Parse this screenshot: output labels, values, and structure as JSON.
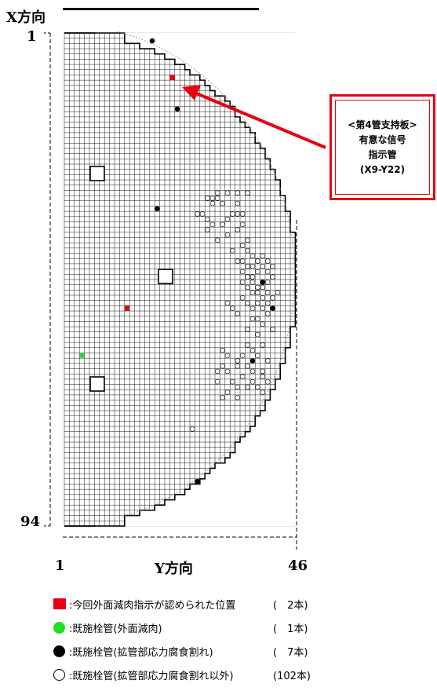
{
  "axes": {
    "x_direction_label": "X方向",
    "y_direction_label": "Y方向",
    "x_start": "1",
    "x_end": "94",
    "y_start": "1",
    "y_end": "46"
  },
  "callout": {
    "line1": "<第4管支持板>",
    "line2": "有意な信号",
    "line3": "指示管",
    "line4": "(X9-Y22)"
  },
  "legend": [
    {
      "symbol": "red-square",
      "label": ":今回外面減肉指示が認められた位置",
      "count": "(　2本)"
    },
    {
      "symbol": "green-circle",
      "label": ":既施栓管(外面減肉)",
      "count": "(　1本)"
    },
    {
      "symbol": "black-circle",
      "label": ":既施栓管(拡管部応力腐食割れ)",
      "count": "(　7本)"
    },
    {
      "symbol": "open-circle",
      "label": ":既施栓管(拡管部応力腐食割れ以外)",
      "count": "(102本)"
    }
  ],
  "colors": {
    "red": "#e60012",
    "green": "#22dd22",
    "black": "#000000",
    "grid": "#000000"
  },
  "markers": {
    "red_squares": [
      [
        9,
        22
      ],
      [
        53,
        13
      ]
    ],
    "green_circles": [
      [
        62,
        4
      ]
    ],
    "black_circles": [
      [
        2,
        18
      ],
      [
        15,
        23
      ],
      [
        34,
        19
      ],
      [
        48,
        40
      ],
      [
        53,
        42
      ],
      [
        63,
        38
      ],
      [
        86,
        27
      ]
    ],
    "open_circles": [
      [
        31,
        31
      ],
      [
        31,
        33
      ],
      [
        31,
        35
      ],
      [
        31,
        37
      ],
      [
        32,
        29
      ],
      [
        32,
        30
      ],
      [
        32,
        31
      ],
      [
        33,
        30
      ],
      [
        33,
        32
      ],
      [
        33,
        35
      ],
      [
        35,
        27
      ],
      [
        35,
        28
      ],
      [
        35,
        34
      ],
      [
        35,
        35
      ],
      [
        35,
        36
      ],
      [
        36,
        29
      ],
      [
        36,
        33
      ],
      [
        37,
        30
      ],
      [
        37,
        32
      ],
      [
        37,
        36
      ],
      [
        38,
        29
      ],
      [
        38,
        35
      ],
      [
        39,
        33
      ],
      [
        40,
        31
      ],
      [
        40,
        37
      ],
      [
        41,
        36
      ],
      [
        42,
        34
      ],
      [
        42,
        37
      ],
      [
        43,
        38
      ],
      [
        43,
        40
      ],
      [
        44,
        35
      ],
      [
        44,
        36
      ],
      [
        44,
        39
      ],
      [
        44,
        41
      ],
      [
        45,
        37
      ],
      [
        45,
        38
      ],
      [
        45,
        40
      ],
      [
        45,
        42
      ],
      [
        46,
        36
      ],
      [
        46,
        39
      ],
      [
        46,
        41
      ],
      [
        47,
        37
      ],
      [
        47,
        38
      ],
      [
        47,
        42
      ],
      [
        48,
        36
      ],
      [
        48,
        38
      ],
      [
        48,
        41
      ],
      [
        49,
        37
      ],
      [
        49,
        39
      ],
      [
        49,
        40
      ],
      [
        50,
        38
      ],
      [
        50,
        39
      ],
      [
        50,
        41
      ],
      [
        50,
        43
      ],
      [
        51,
        36
      ],
      [
        51,
        40
      ],
      [
        51,
        42
      ],
      [
        52,
        33
      ],
      [
        52,
        37
      ],
      [
        52,
        39
      ],
      [
        52,
        41
      ],
      [
        53,
        34
      ],
      [
        53,
        38
      ],
      [
        53,
        40
      ],
      [
        54,
        35
      ],
      [
        54,
        41
      ],
      [
        55,
        38
      ],
      [
        55,
        39
      ],
      [
        56,
        40
      ],
      [
        57,
        37
      ],
      [
        57,
        42
      ],
      [
        58,
        39
      ],
      [
        60,
        37
      ],
      [
        60,
        40
      ],
      [
        61,
        32
      ],
      [
        61,
        38
      ],
      [
        62,
        33
      ],
      [
        62,
        36
      ],
      [
        62,
        39
      ],
      [
        63,
        35
      ],
      [
        63,
        41
      ],
      [
        64,
        32
      ],
      [
        64,
        35
      ],
      [
        64,
        37
      ],
      [
        65,
        31
      ],
      [
        65,
        33
      ],
      [
        65,
        38
      ],
      [
        65,
        40
      ],
      [
        66,
        36
      ],
      [
        66,
        40
      ],
      [
        67,
        31
      ],
      [
        67,
        34
      ],
      [
        67,
        38
      ],
      [
        67,
        41
      ],
      [
        68,
        35
      ],
      [
        68,
        37
      ],
      [
        68,
        39
      ],
      [
        69,
        33
      ],
      [
        69,
        40
      ],
      [
        70,
        32
      ],
      [
        70,
        35
      ],
      [
        76,
        26
      ]
    ]
  }
}
